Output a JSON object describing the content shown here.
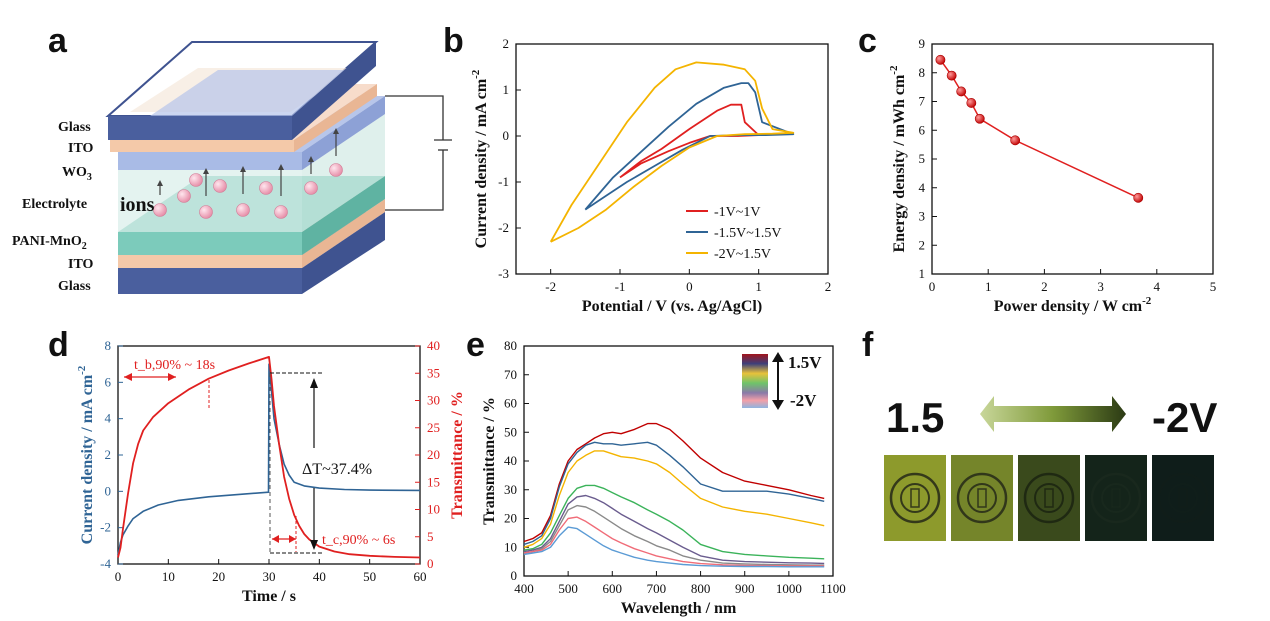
{
  "panels": {
    "a": {
      "label": "a",
      "layers": [
        "Glass",
        "ITO",
        "WO3",
        "Electrolyte",
        "PANI-MnO2",
        "ITO",
        "Glass"
      ],
      "ions_label": "ions"
    },
    "b": {
      "label": "b"
    },
    "c": {
      "label": "c"
    },
    "d": {
      "label": "d",
      "annotations": {
        "tb": "t_b,90% ~ 18s",
        "tc": "t_c,90% ~ 6s",
        "dT": "ΔT~37.4%"
      }
    },
    "e": {
      "label": "e",
      "legend_top": "1.5V",
      "legend_bottom": "-2V"
    },
    "f": {
      "label": "f",
      "left_text": "1.5",
      "right_text": "-2V"
    }
  },
  "colors": {
    "red": "#e02020",
    "blue": "#2f6495",
    "yellow": "#f4b400",
    "green": "#3bb35a",
    "purple": "#6a5c8e",
    "gray": "#8a8a8a",
    "lightblue": "#5b9bd5",
    "pink": "#f06c78"
  },
  "chart_data": [
    {
      "id": "b",
      "type": "line",
      "xlabel": "Potential / V (vs. Ag/AgCl)",
      "ylabel": "Current density / mA cm⁻²",
      "xlim": [
        -2.5,
        2
      ],
      "ylim": [
        -3,
        2
      ],
      "xticks": [
        -2,
        -1,
        0,
        1,
        2
      ],
      "yticks": [
        -3,
        -2,
        -1,
        0,
        1,
        2
      ],
      "legend_position": "bottom-right",
      "series": [
        {
          "name": "-1V~1V",
          "color": "#e02020",
          "x": [
            -1,
            -0.7,
            -0.4,
            0,
            0.4,
            0.6,
            0.75,
            0.8,
            1,
            0.7,
            0.3,
            0,
            -0.3,
            -0.7,
            -1
          ],
          "y": [
            -0.9,
            -0.55,
            -0.28,
            0.15,
            0.55,
            0.68,
            0.68,
            0.3,
            0.02,
            0.0,
            0.0,
            -0.15,
            -0.33,
            -0.6,
            -0.9
          ]
        },
        {
          "name": "-1.5V~1.5V",
          "color": "#2f6495",
          "x": [
            -1.5,
            -1.1,
            -0.7,
            -0.3,
            0.1,
            0.5,
            0.75,
            0.85,
            0.95,
            1.05,
            1.5,
            1.1,
            0.7,
            0.3,
            -0.1,
            -0.5,
            -0.9,
            -1.2,
            -1.5
          ],
          "y": [
            -1.6,
            -0.9,
            -0.35,
            0.2,
            0.7,
            1.05,
            1.15,
            1.15,
            0.95,
            0.3,
            0.04,
            0.02,
            0.02,
            0.0,
            -0.3,
            -0.65,
            -1.0,
            -1.3,
            -1.6
          ]
        },
        {
          "name": "-2V~1.5V",
          "color": "#f4b400",
          "x": [
            -2,
            -1.7,
            -1.3,
            -0.9,
            -0.5,
            -0.2,
            0.1,
            0.5,
            0.8,
            0.95,
            1.05,
            1.2,
            1.5,
            1.2,
            0.8,
            0.4,
            0,
            -0.4,
            -0.8,
            -1.2,
            -1.6,
            -2
          ],
          "y": [
            -2.3,
            -1.5,
            -0.6,
            0.3,
            1.05,
            1.45,
            1.6,
            1.55,
            1.45,
            1.2,
            0.6,
            0.15,
            0.07,
            0.05,
            0.04,
            0.0,
            -0.25,
            -0.65,
            -1.1,
            -1.6,
            -2.0,
            -2.3
          ]
        }
      ]
    },
    {
      "id": "c",
      "type": "line",
      "xlabel": "Power density / W cm⁻²",
      "ylabel": "Energy density / mWh cm⁻²",
      "xlim": [
        0,
        5
      ],
      "ylim": [
        1,
        9
      ],
      "xticks": [
        0,
        1,
        2,
        3,
        4,
        5
      ],
      "yticks": [
        1,
        2,
        3,
        4,
        5,
        6,
        7,
        8,
        9
      ],
      "series": [
        {
          "name": "",
          "color": "#e02020",
          "x": [
            0.15,
            0.35,
            0.52,
            0.7,
            0.85,
            1.48,
            3.67
          ],
          "y": [
            8.45,
            7.9,
            7.35,
            6.95,
            6.4,
            5.65,
            3.65
          ]
        }
      ]
    },
    {
      "id": "d",
      "type": "line",
      "xlabel": "Time / s",
      "ylabel": "Current density / mA cm⁻²",
      "ylabel2": "Transmittance / %",
      "xlim": [
        0,
        60
      ],
      "ylim": [
        -4,
        8
      ],
      "ylim2": [
        0,
        40
      ],
      "xticks": [
        0,
        10,
        20,
        30,
        40,
        50,
        60
      ],
      "yticks": [
        -4,
        -2,
        0,
        2,
        4,
        6,
        8
      ],
      "yticks2": [
        0,
        5,
        10,
        15,
        20,
        25,
        30,
        35,
        40
      ],
      "series": [
        {
          "name": "current",
          "axis": "left",
          "color": "#2f6495",
          "x": [
            0,
            0.5,
            1,
            2,
            3,
            5,
            8,
            12,
            18,
            25,
            29.9,
            30,
            30.5,
            31,
            32,
            33,
            34,
            35,
            37,
            40,
            45,
            50,
            60
          ],
          "y": [
            -3.5,
            -2.8,
            -2.4,
            -1.9,
            -1.5,
            -1.1,
            -0.75,
            -0.5,
            -0.3,
            -0.15,
            -0.05,
            7.0,
            5.5,
            4.0,
            2.6,
            1.5,
            0.9,
            0.5,
            0.3,
            0.18,
            0.1,
            0.07,
            0.05
          ]
        },
        {
          "name": "transmittance",
          "axis": "right",
          "color": "#e02020",
          "x": [
            0,
            0.5,
            1,
            2,
            3,
            4,
            5,
            7,
            10,
            14,
            18,
            22,
            26,
            30,
            30.5,
            31,
            32,
            33,
            34,
            35,
            36,
            37,
            38,
            40,
            43,
            46,
            50,
            55,
            60
          ],
          "y": [
            1.2,
            3,
            6.5,
            13,
            18.5,
            22,
            24.5,
            27,
            29.5,
            32,
            34,
            35.5,
            36.8,
            38,
            34,
            29,
            22,
            16,
            12,
            9,
            7,
            5.5,
            4.5,
            3.2,
            2.3,
            1.8,
            1.5,
            1.3,
            1.2
          ]
        }
      ]
    },
    {
      "id": "e",
      "type": "line",
      "xlabel": "Wavelength / nm",
      "ylabel": "Transmittance / %",
      "xlim": [
        400,
        1100
      ],
      "ylim": [
        0,
        80
      ],
      "xticks": [
        400,
        500,
        600,
        700,
        800,
        900,
        1000,
        1100
      ],
      "yticks": [
        0,
        10,
        20,
        30,
        40,
        50,
        60,
        70,
        80
      ],
      "x": [
        400,
        420,
        440,
        460,
        480,
        500,
        520,
        540,
        560,
        580,
        600,
        620,
        650,
        680,
        700,
        730,
        760,
        800,
        850,
        900,
        950,
        1000,
        1050,
        1080
      ],
      "series": [
        {
          "name": "",
          "color": "#c00000",
          "y": [
            12,
            13,
            15,
            21,
            32,
            40,
            44,
            46,
            48,
            49.5,
            50,
            49.5,
            51,
            53,
            53,
            51,
            47,
            41,
            36,
            33,
            31.5,
            30,
            28,
            27
          ]
        },
        {
          "name": "",
          "color": "#2f6495",
          "y": [
            11,
            12,
            14,
            20,
            31,
            39,
            43,
            45.5,
            46.5,
            46,
            46,
            45.5,
            46,
            46.5,
            45.5,
            42,
            38,
            32,
            29.5,
            29.5,
            29.5,
            28.5,
            27,
            26
          ]
        },
        {
          "name": "",
          "color": "#f4b400",
          "y": [
            10,
            11,
            13,
            18,
            28,
            36,
            40,
            42,
            43.5,
            43.5,
            42.5,
            41.5,
            41,
            40,
            39,
            36,
            32,
            27,
            24,
            22.5,
            21.5,
            20,
            18.5,
            17.5
          ]
        },
        {
          "name": "",
          "color": "#3bb35a",
          "y": [
            9,
            9.5,
            11,
            15,
            21,
            27,
            30.5,
            31.5,
            31.5,
            30.5,
            29,
            27.5,
            25.5,
            23,
            21.5,
            19,
            16,
            11,
            8.5,
            7.5,
            7,
            6.5,
            6.2,
            6
          ]
        },
        {
          "name": "",
          "color": "#6a5c8e",
          "y": [
            8.5,
            9,
            10,
            13,
            19,
            25,
            27.5,
            28,
            27,
            25.5,
            23.5,
            21.5,
            19,
            16.5,
            15,
            12.5,
            10,
            7,
            5.5,
            5,
            4.8,
            4.6,
            4.5,
            4.4
          ]
        },
        {
          "name": "",
          "color": "#8a8a8a",
          "y": [
            8,
            8.5,
            9.5,
            12,
            17.5,
            23,
            24.5,
            24,
            22.5,
            20.5,
            18.5,
            16.5,
            14,
            12,
            10.5,
            9,
            7,
            5.5,
            4.5,
            4.2,
            4,
            3.9,
            3.8,
            3.8
          ]
        },
        {
          "name": "",
          "color": "#f06c78",
          "y": [
            8,
            8.5,
            9,
            11,
            16,
            20,
            20.5,
            19,
            17,
            15,
            13,
            11.5,
            9.5,
            8,
            7,
            6,
            5,
            4.3,
            3.9,
            3.7,
            3.6,
            3.5,
            3.5,
            3.5
          ]
        },
        {
          "name": "",
          "color": "#5b9bd5",
          "y": [
            7.5,
            8,
            8.5,
            10,
            14,
            17,
            16.5,
            14.5,
            12.5,
            10.5,
            9,
            8,
            6.5,
            5.5,
            5,
            4.5,
            4,
            3.6,
            3.4,
            3.3,
            3.3,
            3.2,
            3.2,
            3.2
          ]
        }
      ]
    }
  ]
}
